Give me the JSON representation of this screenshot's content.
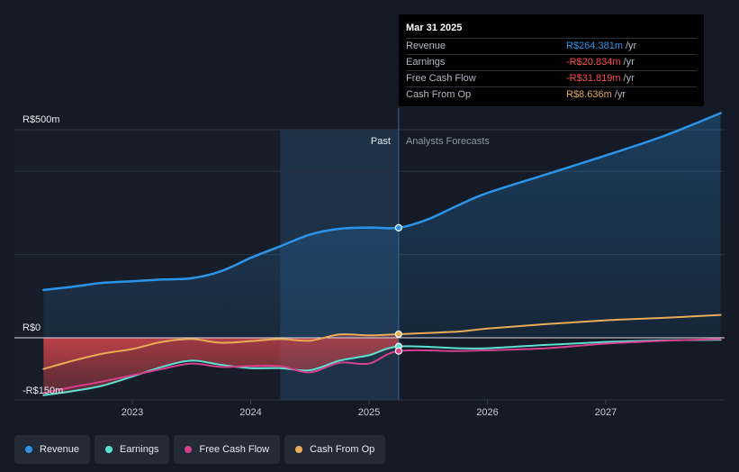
{
  "chart_data": {
    "type": "line",
    "currency": "R$",
    "y_axis": {
      "top_label": "R$500m",
      "zero_label": "R$0",
      "bottom_label": "-R$150m",
      "ylim": [
        -150,
        500
      ]
    },
    "x_ticks": [
      {
        "label": "2023",
        "value": 2023
      },
      {
        "label": "2024",
        "value": 2024
      },
      {
        "label": "2025",
        "value": 2025
      },
      {
        "label": "2026",
        "value": 2026
      },
      {
        "label": "2027",
        "value": 2027
      }
    ],
    "xlim": [
      2022.0,
      2028.0
    ],
    "past_label": "Past",
    "forecast_label": "Analysts Forecasts",
    "divider_x": 2025.25,
    "highlight_start_x": 2024.25,
    "series": [
      {
        "name": "Revenue",
        "color": "#2c94e8",
        "fill": "area",
        "points": [
          [
            2022.25,
            115
          ],
          [
            2022.5,
            123
          ],
          [
            2022.75,
            132
          ],
          [
            2023.0,
            136
          ],
          [
            2023.25,
            140
          ],
          [
            2023.5,
            143
          ],
          [
            2023.75,
            160
          ],
          [
            2024.0,
            192
          ],
          [
            2024.25,
            220
          ],
          [
            2024.5,
            248
          ],
          [
            2024.75,
            262
          ],
          [
            2025.0,
            265
          ],
          [
            2025.25,
            264.381
          ],
          [
            2025.5,
            285
          ],
          [
            2025.75,
            318
          ],
          [
            2026.0,
            348
          ],
          [
            2026.5,
            393
          ],
          [
            2027.0,
            438
          ],
          [
            2027.5,
            486
          ],
          [
            2027.97,
            540
          ]
        ]
      },
      {
        "name": "Earnings",
        "color": "#5ee0d0",
        "fill": "negative",
        "points": [
          [
            2022.25,
            -138
          ],
          [
            2022.5,
            -128
          ],
          [
            2022.75,
            -115
          ],
          [
            2023.0,
            -93
          ],
          [
            2023.25,
            -70
          ],
          [
            2023.5,
            -55
          ],
          [
            2023.75,
            -65
          ],
          [
            2024.0,
            -73
          ],
          [
            2024.25,
            -73
          ],
          [
            2024.5,
            -78
          ],
          [
            2024.75,
            -55
          ],
          [
            2025.0,
            -42
          ],
          [
            2025.25,
            -20.834
          ],
          [
            2025.75,
            -25
          ],
          [
            2026.0,
            -25
          ],
          [
            2026.5,
            -17
          ],
          [
            2027.0,
            -10
          ],
          [
            2027.5,
            -6
          ],
          [
            2027.97,
            -5
          ]
        ]
      },
      {
        "name": "Free Cash Flow",
        "color": "#d5408c",
        "fill": "none",
        "points": [
          [
            2022.25,
            -133
          ],
          [
            2022.5,
            -118
          ],
          [
            2022.75,
            -105
          ],
          [
            2023.0,
            -90
          ],
          [
            2023.25,
            -75
          ],
          [
            2023.5,
            -62
          ],
          [
            2023.75,
            -70
          ],
          [
            2024.0,
            -68
          ],
          [
            2024.25,
            -68
          ],
          [
            2024.5,
            -83
          ],
          [
            2024.75,
            -60
          ],
          [
            2025.0,
            -62
          ],
          [
            2025.25,
            -31.819
          ],
          [
            2025.75,
            -32
          ],
          [
            2026.0,
            -30
          ],
          [
            2026.5,
            -25
          ],
          [
            2027.0,
            -14
          ],
          [
            2027.5,
            -7
          ],
          [
            2027.97,
            -3
          ]
        ]
      },
      {
        "name": "Cash From Op",
        "color": "#e8ab56",
        "fill": "negative",
        "points": [
          [
            2022.25,
            -75
          ],
          [
            2022.5,
            -55
          ],
          [
            2022.75,
            -38
          ],
          [
            2023.0,
            -27
          ],
          [
            2023.25,
            -10
          ],
          [
            2023.5,
            -3
          ],
          [
            2023.75,
            -12
          ],
          [
            2024.0,
            -8
          ],
          [
            2024.25,
            -3
          ],
          [
            2024.5,
            -7
          ],
          [
            2024.75,
            8
          ],
          [
            2025.0,
            6
          ],
          [
            2025.25,
            8.636
          ],
          [
            2025.75,
            15
          ],
          [
            2026.0,
            22
          ],
          [
            2026.5,
            33
          ],
          [
            2027.0,
            42
          ],
          [
            2027.5,
            48
          ],
          [
            2027.97,
            55
          ]
        ]
      }
    ]
  },
  "tooltip": {
    "date": "Mar 31 2025",
    "rows": [
      {
        "name": "Revenue",
        "value": "R$264.381m",
        "unit": "/yr",
        "color": "#2c94e8"
      },
      {
        "name": "Earnings",
        "value": "-R$20.834m",
        "unit": "/yr",
        "color": "#ff4d4d"
      },
      {
        "name": "Free Cash Flow",
        "value": "-R$31.819m",
        "unit": "/yr",
        "color": "#ff4d4d"
      },
      {
        "name": "Cash From Op",
        "value": "R$8.636m",
        "unit": "/yr",
        "color": "#e8ab56"
      }
    ]
  },
  "legend": [
    {
      "label": "Revenue",
      "color": "#2c94e8"
    },
    {
      "label": "Earnings",
      "color": "#5ee0d0"
    },
    {
      "label": "Free Cash Flow",
      "color": "#d5408c"
    },
    {
      "label": "Cash From Op",
      "color": "#e8ab56"
    }
  ]
}
